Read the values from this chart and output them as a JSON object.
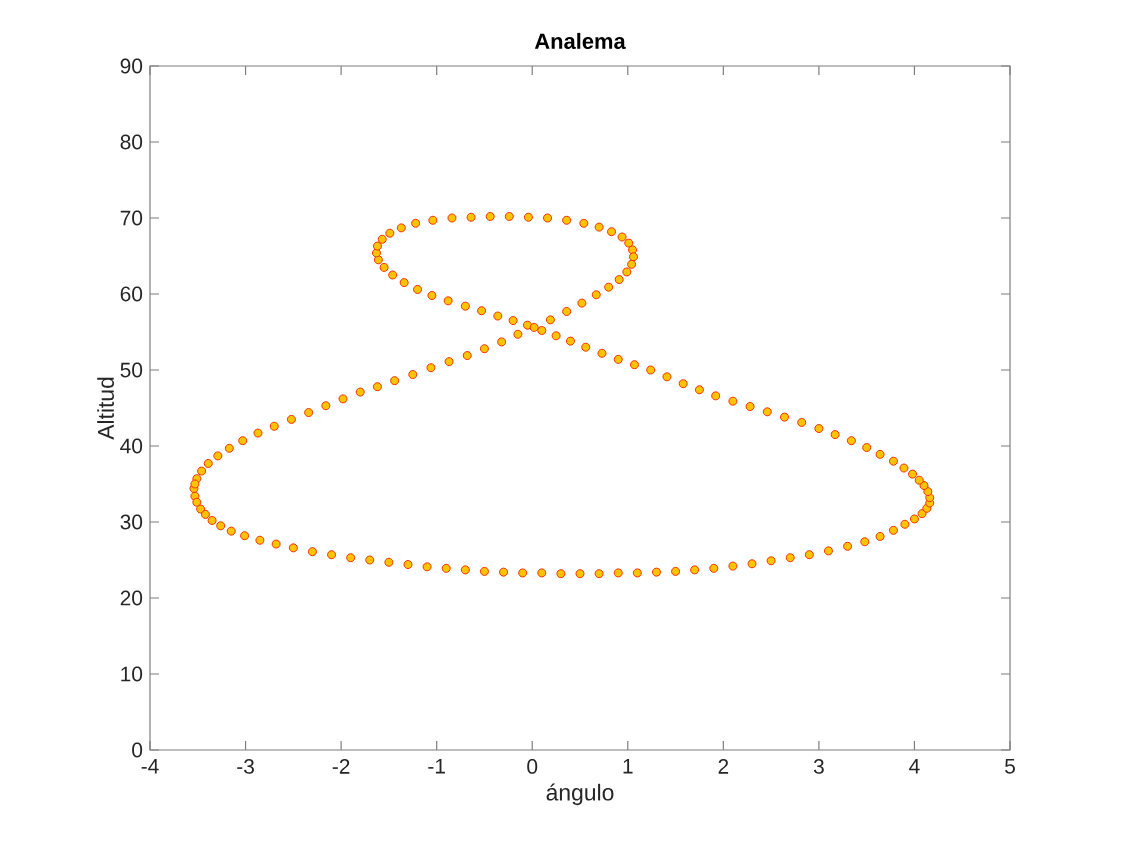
{
  "chart_data": {
    "type": "scatter",
    "title": "Analema",
    "xlabel": "ángulo",
    "ylabel": "Altitud",
    "x": [
      -3.54,
      -3.53,
      -3.51,
      -3.47,
      -3.42,
      -3.35,
      -3.26,
      -3.15,
      -3.01,
      -2.85,
      -2.68,
      -2.5,
      -2.3,
      -2.1,
      -1.9,
      -1.7,
      -1.5,
      -1.3,
      -1.1,
      -0.9,
      -0.7,
      -0.5,
      -0.3,
      -0.1,
      0.1,
      0.3,
      0.5,
      0.7,
      0.9,
      1.1,
      1.3,
      1.5,
      1.7,
      1.9,
      2.1,
      2.3,
      2.5,
      2.7,
      2.9,
      3.1,
      3.3,
      3.48,
      3.64,
      3.78,
      3.9,
      4.0,
      4.08,
      4.13,
      4.16,
      4.16,
      4.14,
      4.1,
      4.05,
      3.98,
      3.89,
      3.78,
      3.64,
      3.5,
      3.34,
      3.17,
      3.0,
      2.82,
      2.64,
      2.46,
      2.28,
      2.1,
      1.92,
      1.75,
      1.58,
      1.41,
      1.24,
      1.07,
      0.9,
      0.73,
      0.56,
      0.4,
      0.25,
      0.1,
      -0.05,
      -0.2,
      -0.36,
      -0.53,
      -0.7,
      -0.88,
      -1.05,
      -1.2,
      -1.34,
      -1.46,
      -1.55,
      -1.61,
      -1.63,
      -1.62,
      -1.57,
      -1.49,
      -1.37,
      -1.22,
      -1.04,
      -0.84,
      -0.64,
      -0.44,
      -0.24,
      -0.04,
      0.16,
      0.36,
      0.54,
      0.7,
      0.83,
      0.94,
      1.01,
      1.05,
      1.06,
      1.04,
      0.99,
      0.91,
      0.8,
      0.67,
      0.52,
      0.36,
      0.19,
      0.02,
      -0.15,
      -0.32,
      -0.5,
      -0.68,
      -0.87,
      -1.06,
      -1.25,
      -1.44,
      -1.62,
      -1.8,
      -1.98,
      -2.16,
      -2.34,
      -2.52,
      -2.7,
      -2.87,
      -3.03,
      -3.17,
      -3.29,
      -3.39,
      -3.46,
      -3.51,
      -3.53
    ],
    "values": [
      34.4,
      33.4,
      32.6,
      31.7,
      31.0,
      30.2,
      29.5,
      28.8,
      28.2,
      27.6,
      27.1,
      26.6,
      26.1,
      25.7,
      25.3,
      25.0,
      24.7,
      24.4,
      24.1,
      23.9,
      23.7,
      23.5,
      23.4,
      23.3,
      23.3,
      23.2,
      23.2,
      23.2,
      23.3,
      23.3,
      23.4,
      23.5,
      23.7,
      23.9,
      24.2,
      24.5,
      24.9,
      25.3,
      25.7,
      26.2,
      26.8,
      27.4,
      28.1,
      28.9,
      29.7,
      30.4,
      31.1,
      31.8,
      32.5,
      33.2,
      34.0,
      34.8,
      35.5,
      36.3,
      37.1,
      38.0,
      38.9,
      39.8,
      40.7,
      41.5,
      42.3,
      43.1,
      43.8,
      44.5,
      45.2,
      45.9,
      46.6,
      47.4,
      48.2,
      49.1,
      50.0,
      50.7,
      51.4,
      52.2,
      53.0,
      53.8,
      54.5,
      55.2,
      55.9,
      56.5,
      57.1,
      57.8,
      58.4,
      59.1,
      59.8,
      60.6,
      61.5,
      62.5,
      63.5,
      64.5,
      65.4,
      66.3,
      67.2,
      68.0,
      68.7,
      69.3,
      69.7,
      70.0,
      70.1,
      70.2,
      70.2,
      70.1,
      70.0,
      69.7,
      69.3,
      68.8,
      68.2,
      67.5,
      66.7,
      65.8,
      64.9,
      63.9,
      62.9,
      61.9,
      60.9,
      59.9,
      58.8,
      57.7,
      56.6,
      55.6,
      54.7,
      53.7,
      52.8,
      51.9,
      51.1,
      50.3,
      49.4,
      48.6,
      47.8,
      47.1,
      46.2,
      45.3,
      44.4,
      43.5,
      42.6,
      41.7,
      40.7,
      39.7,
      38.7,
      37.7,
      36.7,
      35.7,
      35.0
    ],
    "color": "#ffc400",
    "marker": "circle",
    "xlim": [
      -4,
      5
    ],
    "ylim": [
      0,
      90
    ],
    "xticks": [
      -4,
      -3,
      -2,
      -1,
      0,
      1,
      2,
      3,
      4,
      5
    ],
    "yticks": [
      0,
      10,
      20,
      30,
      40,
      50,
      60,
      70,
      80,
      90
    ]
  }
}
